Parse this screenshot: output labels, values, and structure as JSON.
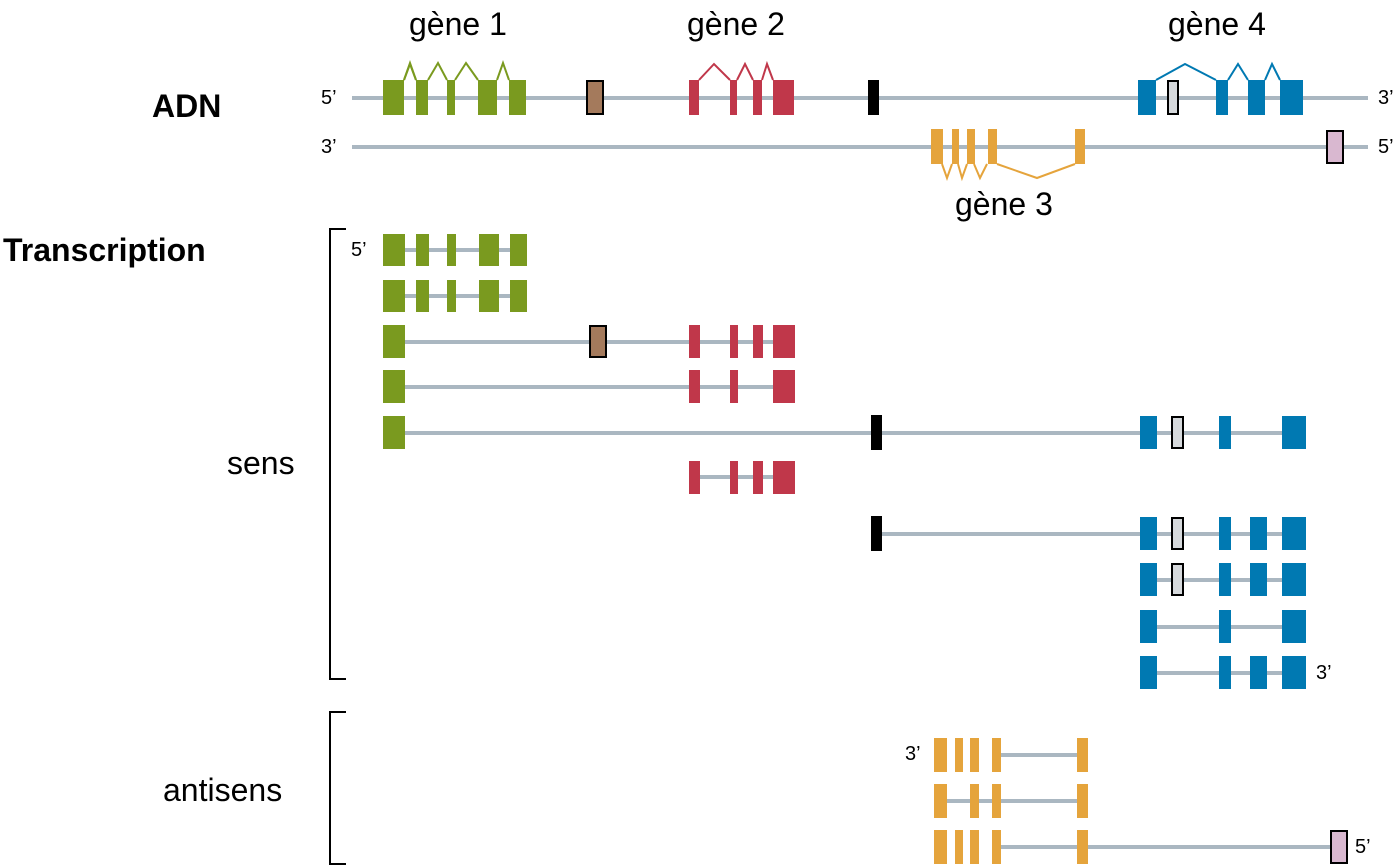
{
  "sections": {
    "adn": "ADN",
    "transcription": "Transcription",
    "sens": "sens",
    "antisens": "antisens"
  },
  "genes": {
    "g1": "gène 1",
    "g2": "gène 2",
    "g3": "gène 3",
    "g4": "gène 4"
  },
  "ends": {
    "five": "5’",
    "three": "3’"
  },
  "colors": {
    "gene1": "#7a9a1f",
    "gene2": "#c0374a",
    "gene3": "#e5a43c",
    "gene4": "#0079b2",
    "brown": "#a47a5c",
    "black": "#000000",
    "grey": "#d6d9dc",
    "lilac": "#d9b8d0",
    "line": "#aab7c1"
  }
}
